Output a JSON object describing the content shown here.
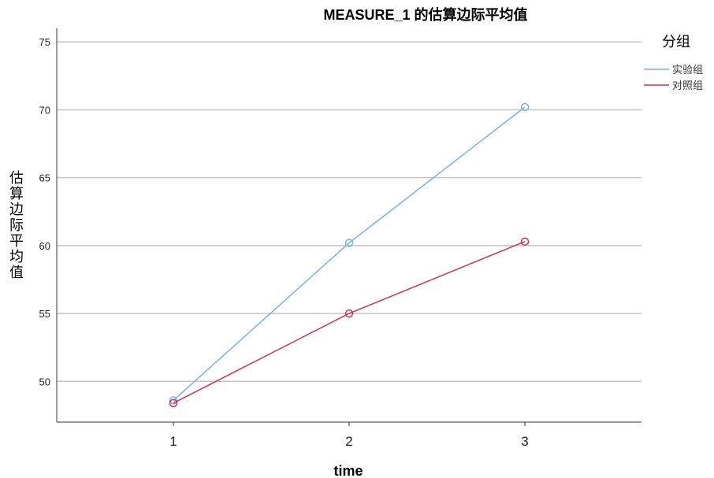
{
  "chart_data": {
    "type": "line",
    "title": "MEASURE_1 的估算边际平均值",
    "xlabel": "time",
    "ylabel": "估算边际平均值",
    "categories": [
      "1",
      "2",
      "3"
    ],
    "ylim": [
      47,
      76
    ],
    "yticks": [
      50,
      55,
      60,
      65,
      70,
      75
    ],
    "grid": true,
    "legend": {
      "title": "分组",
      "placement": "top-right"
    },
    "series": [
      {
        "name": "实验组",
        "color": "#7eb0e0",
        "values": [
          48.6,
          60.2,
          70.2
        ]
      },
      {
        "name": "对照组",
        "color": "#cc3355",
        "values": [
          48.4,
          55.0,
          60.3
        ]
      }
    ]
  }
}
